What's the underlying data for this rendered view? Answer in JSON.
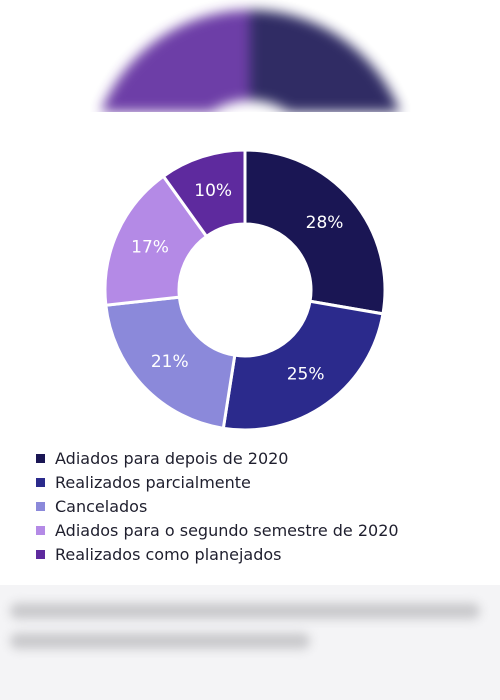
{
  "chart_data": {
    "type": "pie",
    "donut": true,
    "legend_position": "bottom-left",
    "slices": [
      {
        "name": "Adiados para depois de 2020",
        "value": 28,
        "label": "28%",
        "color": "#1a1654"
      },
      {
        "name": "Realizados parcialmente",
        "value": 25,
        "label": "25%",
        "color": "#2b2a8c"
      },
      {
        "name": "Cancelados",
        "value": 21,
        "label": "21%",
        "color": "#8b89da"
      },
      {
        "name": "Adiados para o segundo semestre de 2020",
        "value": 17,
        "label": "17%",
        "color": "#b48ae6"
      },
      {
        "name": "Realizados como planejados",
        "value": 10,
        "label": "10%",
        "color": "#5e2a9e"
      }
    ]
  }
}
